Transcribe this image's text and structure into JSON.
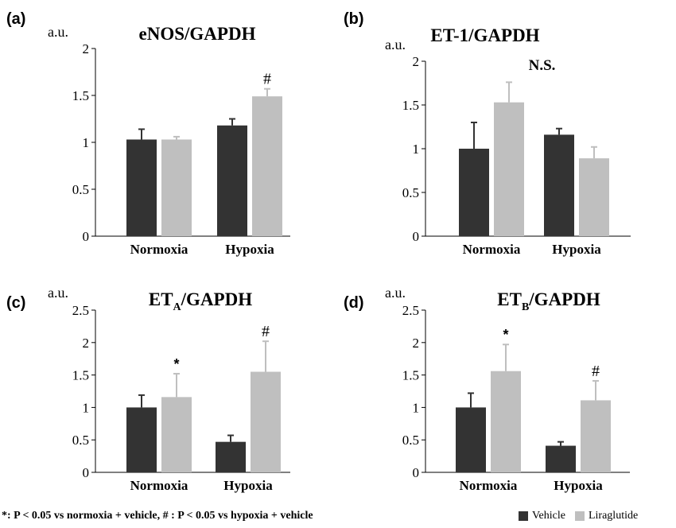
{
  "colors": {
    "vehicle": "#333333",
    "liraglutide": "#bfbfbf"
  },
  "chart_data": [
    {
      "type": "bar",
      "panel_label": "(a)",
      "title": "eNOS/GAPDH",
      "ylabel": "a.u.",
      "ylim": [
        0,
        2
      ],
      "yticks": [
        0,
        0.5,
        1,
        1.5,
        2
      ],
      "ytick_labels": [
        "0",
        "0.5",
        "1",
        "1.5",
        "2"
      ],
      "categories": [
        "Normoxia",
        "Hypoxia"
      ],
      "series": [
        {
          "name": "Vehicle",
          "values": [
            1.03,
            1.18
          ],
          "errors": [
            0.11,
            0.07
          ],
          "marks": [
            "",
            ""
          ]
        },
        {
          "name": "Liraglutide",
          "values": [
            1.03,
            1.49
          ],
          "errors": [
            0.03,
            0.08
          ],
          "marks": [
            "",
            "#"
          ]
        }
      ],
      "annotation": ""
    },
    {
      "type": "bar",
      "panel_label": "(b)",
      "title": "ET-1/GAPDH",
      "ylabel": "a.u.",
      "ylim": [
        0,
        2
      ],
      "yticks": [
        0,
        0.5,
        1,
        1.5,
        2
      ],
      "ytick_labels": [
        "0",
        "0.5",
        "1",
        "1.5",
        "2"
      ],
      "categories": [
        "Normoxia",
        "Hypoxia"
      ],
      "series": [
        {
          "name": "Vehicle",
          "values": [
            1.0,
            1.16
          ],
          "errors": [
            0.3,
            0.07
          ],
          "marks": [
            "",
            ""
          ]
        },
        {
          "name": "Liraglutide",
          "values": [
            1.53,
            0.89
          ],
          "errors": [
            0.23,
            0.13
          ],
          "marks": [
            "",
            ""
          ]
        }
      ],
      "annotation": "N.S."
    },
    {
      "type": "bar",
      "panel_label": "(c)",
      "title": "ET",
      "title_sub": "A",
      "title_rest": "/GAPDH",
      "ylabel": "a.u.",
      "ylim": [
        0,
        2.5
      ],
      "yticks": [
        0,
        0.5,
        1,
        1.5,
        2,
        2.5
      ],
      "ytick_labels": [
        "0",
        "0.5",
        "1",
        "1.5",
        "2",
        "2.5"
      ],
      "categories": [
        "Normoxia",
        "Hypoxia"
      ],
      "series": [
        {
          "name": "Vehicle",
          "values": [
            1.0,
            0.47
          ],
          "errors": [
            0.19,
            0.1
          ],
          "marks": [
            "",
            ""
          ]
        },
        {
          "name": "Liraglutide",
          "values": [
            1.16,
            1.55
          ],
          "errors": [
            0.36,
            0.47
          ],
          "marks": [
            "*",
            "#"
          ]
        }
      ],
      "annotation": ""
    },
    {
      "type": "bar",
      "panel_label": "(d)",
      "title": "ET",
      "title_sub": "B",
      "title_rest": "/GAPDH",
      "ylabel": "a.u.",
      "ylim": [
        0,
        2.5
      ],
      "yticks": [
        0,
        0.5,
        1,
        1.5,
        2,
        2.5
      ],
      "ytick_labels": [
        "0",
        "0.5",
        "1",
        "1.5",
        "2",
        "2.5"
      ],
      "categories": [
        "Normoxia",
        "Hypoxia"
      ],
      "series": [
        {
          "name": "Vehicle",
          "values": [
            1.0,
            0.41
          ],
          "errors": [
            0.22,
            0.06
          ],
          "marks": [
            "",
            ""
          ]
        },
        {
          "name": "Liraglutide",
          "values": [
            1.56,
            1.11
          ],
          "errors": [
            0.41,
            0.3
          ],
          "marks": [
            "*",
            "#"
          ]
        }
      ],
      "annotation": ""
    }
  ],
  "footnote": "*: P < 0.05  vs normoxia + vehicle,  # : P < 0.05 vs hypoxia + vehicle",
  "legend": {
    "vehicle_label": "Vehicle",
    "liraglutide_label": "Liraglutide"
  }
}
